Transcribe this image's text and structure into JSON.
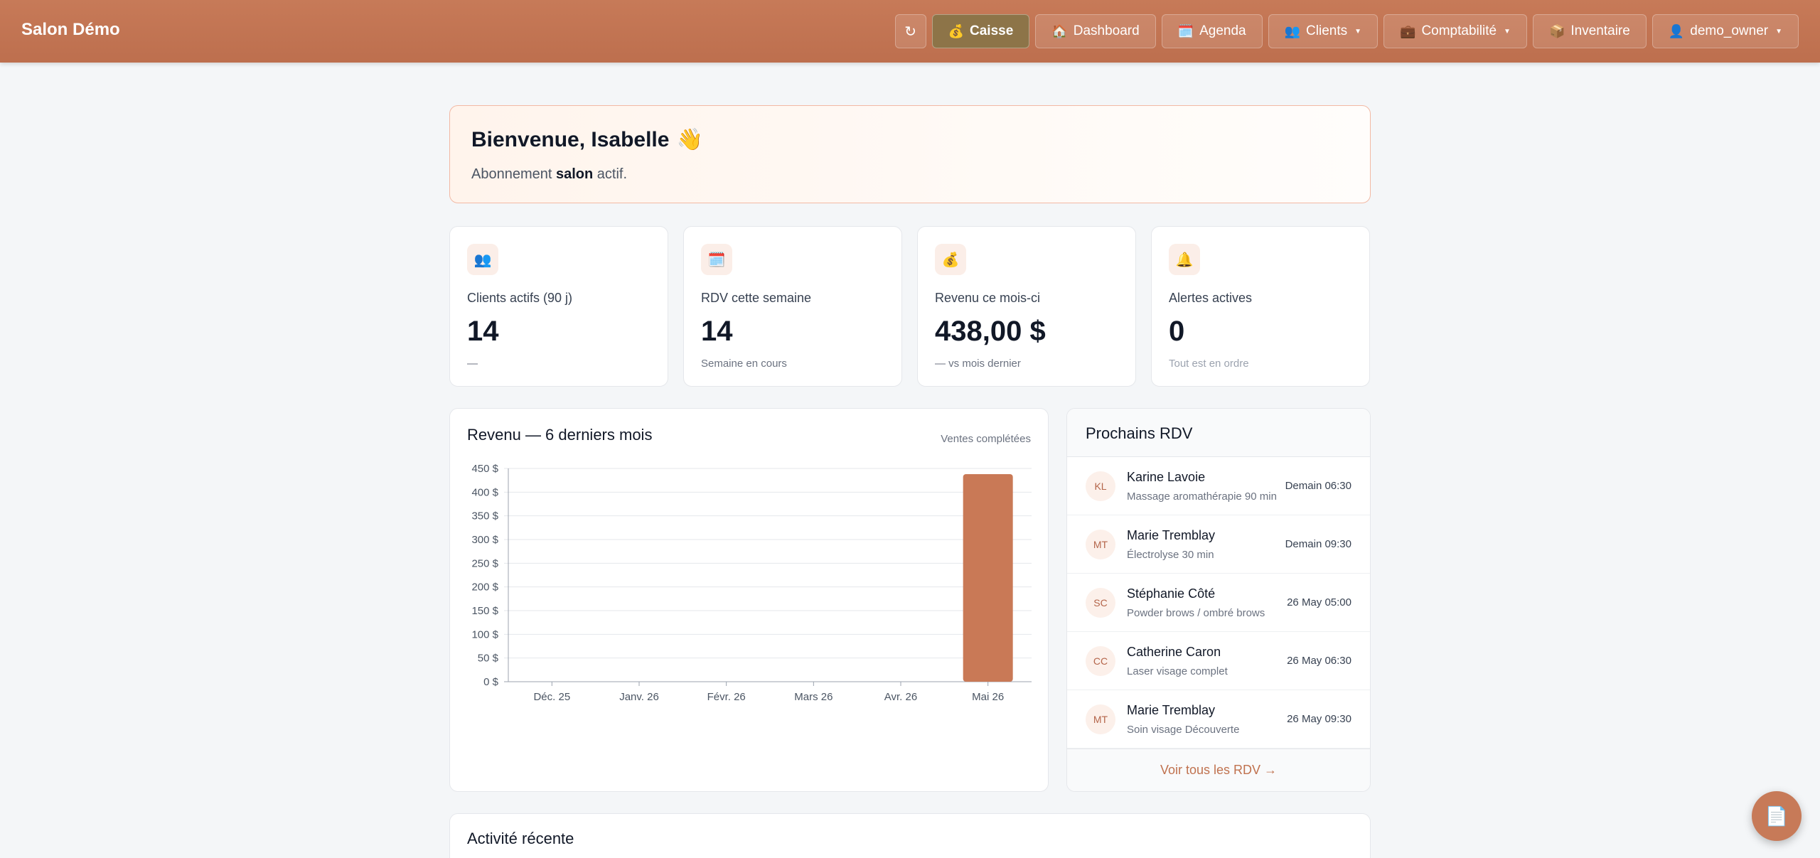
{
  "header": {
    "brand": "Salon Démo",
    "refresh_icon": "↻",
    "nav": [
      {
        "icon": "💰",
        "label": "Caisse"
      },
      {
        "icon": "🏠",
        "label": "Dashboard"
      },
      {
        "icon": "🗓️",
        "label": "Agenda"
      },
      {
        "icon": "👥",
        "label": "Clients"
      },
      {
        "icon": "💼",
        "label": "Comptabilité"
      },
      {
        "icon": "📦",
        "label": "Inventaire"
      },
      {
        "icon": "👤",
        "label": "demo_owner"
      }
    ],
    "active_color": "#8d7448"
  },
  "welcome": {
    "title": "Bienvenue, Isabelle",
    "wave": "👋",
    "line_prefix": "Abonnement ",
    "plan": "salon",
    "line_suffix": " actif."
  },
  "stats": [
    {
      "icon": "👥",
      "label": "Clients actifs (90 j)",
      "value": "14",
      "sub": "—"
    },
    {
      "icon": "🗓️",
      "label": "RDV cette semaine",
      "value": "14",
      "sub": "Semaine en cours"
    },
    {
      "icon": "💰",
      "label": "Revenu ce mois-ci",
      "value": "438,00 $",
      "sub": "— vs mois dernier"
    },
    {
      "icon": "🔔",
      "label": "Alertes actives",
      "value": "0",
      "sub": "Tout est en ordre"
    }
  ],
  "chart_card": {
    "title": "Revenu — 6 derniers mois",
    "subtitle": "Ventes complétées"
  },
  "chart_data": {
    "type": "bar",
    "categories": [
      "Déc. 25",
      "Janv. 26",
      "Févr. 26",
      "Mars 26",
      "Avr. 26",
      "Mai 26"
    ],
    "values": [
      0,
      0,
      0,
      0,
      0,
      438
    ],
    "ylim": [
      0,
      450
    ],
    "yticks": [
      "0 $",
      "50 $",
      "100 $",
      "150 $",
      "200 $",
      "250 $",
      "300 $",
      "350 $",
      "400 $",
      "450 $"
    ],
    "bar_color": "#c97956",
    "grid": true
  },
  "rdv": {
    "title": "Prochains RDV",
    "items": [
      {
        "initials": "KL",
        "name": "Karine Lavoie",
        "service": "Massage aromathérapie 90 min",
        "time": "Demain 06:30"
      },
      {
        "initials": "MT",
        "name": "Marie Tremblay",
        "service": "Électrolyse 30 min",
        "time": "Demain 09:30"
      },
      {
        "initials": "SC",
        "name": "Stéphanie Côté",
        "service": "Powder brows / ombré brows",
        "time": "26 May 05:00"
      },
      {
        "initials": "CC",
        "name": "Catherine Caron",
        "service": "Laser visage complet",
        "time": "26 May 06:30"
      },
      {
        "initials": "MT",
        "name": "Marie Tremblay",
        "service": "Soin visage Découverte",
        "time": "26 May 09:30"
      }
    ],
    "see_all": "Voir tous les RDV →"
  },
  "activity": {
    "title": "Activité récente"
  },
  "fab": {
    "icon": "📄"
  }
}
